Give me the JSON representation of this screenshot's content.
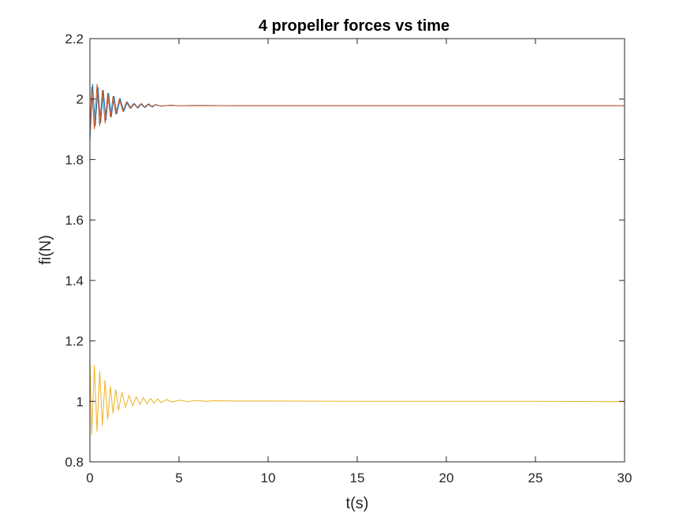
{
  "chart_data": {
    "type": "line",
    "title": "4 propeller forces vs time",
    "xlabel": "t(s)",
    "ylabel": "fi(N)",
    "xlim": [
      0,
      30
    ],
    "ylim": [
      0.8,
      2.2
    ],
    "xticks": [
      0,
      5,
      10,
      15,
      20,
      25,
      30
    ],
    "xtick_labels": [
      "0",
      "5",
      "10",
      "15",
      "20",
      "25",
      "30"
    ],
    "yticks": [
      0.8,
      1.0,
      1.2,
      1.4,
      1.6,
      1.8,
      2.0,
      2.2
    ],
    "ytick_labels": [
      "0.8",
      "1",
      "1.2",
      "1.4",
      "1.6",
      "1.8",
      "2",
      "2.2"
    ],
    "grid": false,
    "legend": "none",
    "series": [
      {
        "color": "#0072BD",
        "points": [
          [
            0,
            1.86
          ],
          [
            0.15,
            2.05
          ],
          [
            0.3,
            1.91
          ],
          [
            0.45,
            2.04
          ],
          [
            0.6,
            1.92
          ],
          [
            0.75,
            2.03
          ],
          [
            0.9,
            1.93
          ],
          [
            1.05,
            2.02
          ],
          [
            1.2,
            1.94
          ],
          [
            1.35,
            2.01
          ],
          [
            1.5,
            1.95
          ],
          [
            1.7,
            2.0
          ],
          [
            1.9,
            1.96
          ],
          [
            2.1,
            1.99
          ],
          [
            2.3,
            1.97
          ],
          [
            2.5,
            1.985
          ],
          [
            2.7,
            1.97
          ],
          [
            2.9,
            1.985
          ],
          [
            3.1,
            1.972
          ],
          [
            3.3,
            1.984
          ],
          [
            3.5,
            1.974
          ],
          [
            3.7,
            1.982
          ],
          [
            4.0,
            1.976
          ],
          [
            4.5,
            1.98
          ],
          [
            5,
            1.978
          ],
          [
            6,
            1.979
          ],
          [
            8,
            1.978
          ],
          [
            30,
            1.978
          ]
        ]
      },
      {
        "color": "#D95319",
        "points": [
          [
            0,
            1.88
          ],
          [
            0.1,
            2.04
          ],
          [
            0.25,
            1.9
          ],
          [
            0.4,
            2.05
          ],
          [
            0.55,
            1.91
          ],
          [
            0.7,
            2.03
          ],
          [
            0.85,
            1.92
          ],
          [
            1.0,
            2.02
          ],
          [
            1.15,
            1.94
          ],
          [
            1.3,
            2.01
          ],
          [
            1.45,
            1.95
          ],
          [
            1.65,
            2.0
          ],
          [
            1.85,
            1.96
          ],
          [
            2.05,
            1.99
          ],
          [
            2.25,
            1.97
          ],
          [
            2.45,
            1.985
          ],
          [
            2.65,
            1.972
          ],
          [
            2.85,
            1.984
          ],
          [
            3.05,
            1.973
          ],
          [
            3.25,
            1.983
          ],
          [
            3.45,
            1.975
          ],
          [
            3.65,
            1.981
          ],
          [
            3.95,
            1.977
          ],
          [
            4.5,
            1.979
          ],
          [
            5,
            1.978
          ],
          [
            6,
            1.978
          ],
          [
            8,
            1.978
          ],
          [
            30,
            1.978
          ]
        ]
      },
      {
        "color": "#EDB120",
        "points": [
          [
            0,
            1.14
          ],
          [
            0.1,
            0.89
          ],
          [
            0.25,
            1.12
          ],
          [
            0.4,
            0.9
          ],
          [
            0.55,
            1.1
          ],
          [
            0.7,
            0.92
          ],
          [
            0.85,
            1.07
          ],
          [
            1.0,
            0.94
          ],
          [
            1.15,
            1.05
          ],
          [
            1.3,
            0.96
          ],
          [
            1.45,
            1.04
          ],
          [
            1.6,
            0.97
          ],
          [
            1.8,
            1.03
          ],
          [
            2.0,
            0.98
          ],
          [
            2.2,
            1.02
          ],
          [
            2.4,
            0.985
          ],
          [
            2.6,
            1.015
          ],
          [
            2.8,
            0.99
          ],
          [
            3.0,
            1.012
          ],
          [
            3.2,
            0.992
          ],
          [
            3.4,
            1.01
          ],
          [
            3.6,
            0.994
          ],
          [
            3.8,
            1.008
          ],
          [
            4.0,
            0.996
          ],
          [
            4.3,
            1.006
          ],
          [
            4.6,
            0.998
          ],
          [
            5.0,
            1.004
          ],
          [
            5.5,
            0.999
          ],
          [
            6,
            1.003
          ],
          [
            6.5,
            1.0
          ],
          [
            7,
            1.002
          ],
          [
            8,
            1.001
          ],
          [
            10,
            1.001
          ],
          [
            15,
            1.0
          ],
          [
            20,
            1.0
          ],
          [
            25,
            1.0
          ],
          [
            30,
            0.999
          ]
        ]
      }
    ]
  }
}
